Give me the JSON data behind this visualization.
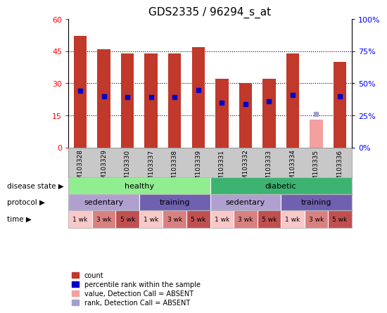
{
  "title": "GDS2335 / 96294_s_at",
  "samples": [
    "GSM103328",
    "GSM103329",
    "GSM103330",
    "GSM103337",
    "GSM103338",
    "GSM103339",
    "GSM103331",
    "GSM103332",
    "GSM103333",
    "GSM103334",
    "GSM103335",
    "GSM103336"
  ],
  "count_values": [
    52,
    46,
    44,
    44,
    44,
    47,
    32,
    30,
    32,
    44,
    0,
    40
  ],
  "absent_value_values": [
    0,
    0,
    0,
    0,
    0,
    0,
    0,
    0,
    0,
    0,
    13,
    0
  ],
  "percentile_rank": [
    44,
    40,
    39,
    39,
    39,
    45,
    35,
    34,
    36,
    41,
    null,
    40
  ],
  "absent_rank": [
    null,
    null,
    null,
    null,
    null,
    null,
    null,
    null,
    null,
    null,
    26,
    null
  ],
  "ylim": [
    0,
    60
  ],
  "yticks": [
    0,
    15,
    30,
    45,
    60
  ],
  "y2ticks": [
    0,
    25,
    50,
    75,
    100
  ],
  "y2ticklabels": [
    "0%",
    "25%",
    "50%",
    "75%",
    "100%"
  ],
  "bar_color": "#c0392b",
  "absent_bar_color": "#f4a0a0",
  "percentile_color": "#0000cc",
  "absent_rank_color": "#a0a0cc",
  "disease_state_groups": [
    {
      "label": "healthy",
      "start": 0,
      "end": 6,
      "color": "#90ee90"
    },
    {
      "label": "diabetic",
      "start": 6,
      "end": 12,
      "color": "#3cb371"
    }
  ],
  "protocol_groups": [
    {
      "label": "sedentary",
      "start": 0,
      "end": 3,
      "color": "#b0a0d0"
    },
    {
      "label": "training",
      "start": 3,
      "end": 6,
      "color": "#7060b0"
    },
    {
      "label": "sedentary",
      "start": 6,
      "end": 9,
      "color": "#b0a0d0"
    },
    {
      "label": "training",
      "start": 9,
      "end": 12,
      "color": "#7060b0"
    }
  ],
  "time_labels": [
    "1 wk",
    "3 wk",
    "5 wk",
    "1 wk",
    "3 wk",
    "5 wk",
    "1 wk",
    "3 wk",
    "5 wk",
    "1 wk",
    "3 wk",
    "5 wk"
  ],
  "time_colors": [
    "#f9c8c8",
    "#d98080",
    "#c05050",
    "#f9c8c8",
    "#d98080",
    "#c05050",
    "#f9c8c8",
    "#d98080",
    "#c05050",
    "#f9c8c8",
    "#d98080",
    "#c05050"
  ],
  "legend_items": [
    {
      "label": "count",
      "color": "#c0392b"
    },
    {
      "label": "percentile rank within the sample",
      "color": "#0000cc"
    },
    {
      "label": "value, Detection Call = ABSENT",
      "color": "#f4a0a0"
    },
    {
      "label": "rank, Detection Call = ABSENT",
      "color": "#a0a0cc"
    }
  ],
  "row_labels": [
    "disease state",
    "protocol",
    "time"
  ],
  "xlabel_bg": "#c8c8c8"
}
